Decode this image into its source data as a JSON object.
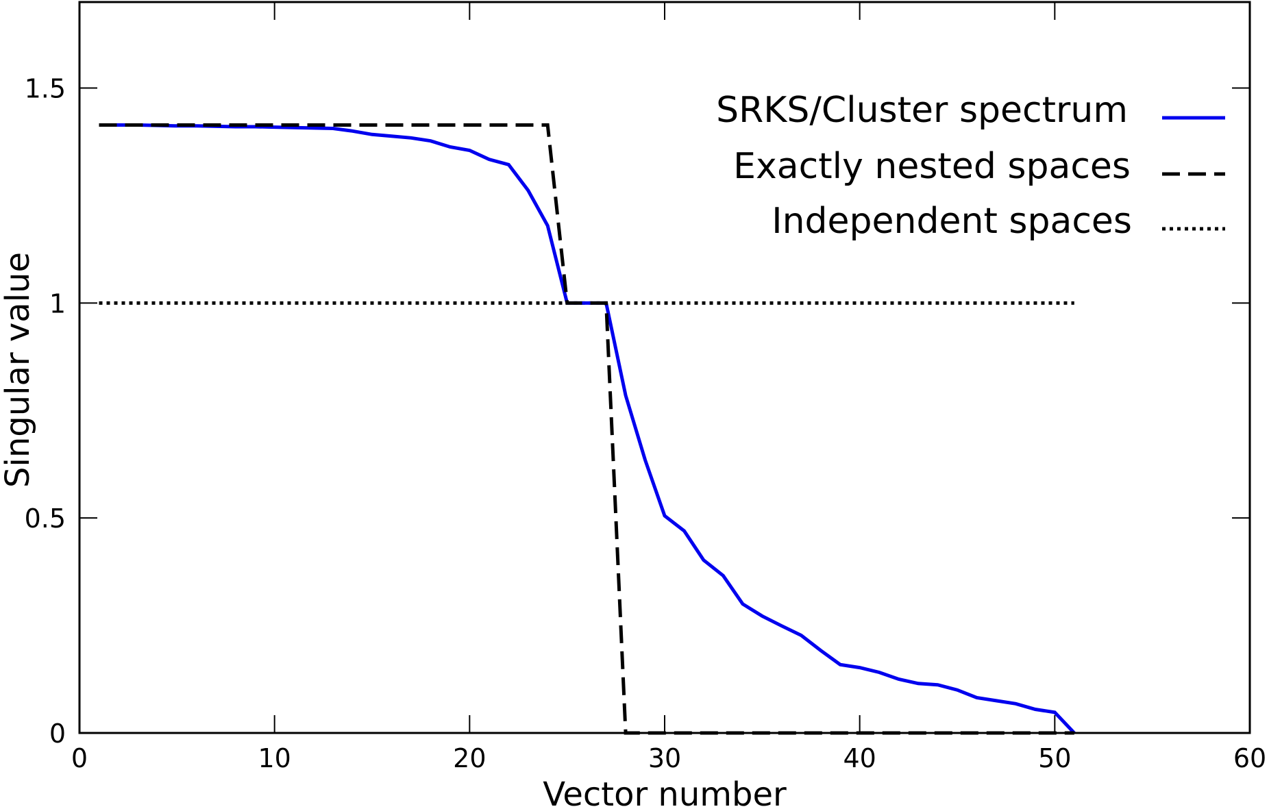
{
  "chart_data": {
    "type": "line",
    "title": "",
    "xlabel": "Vector number",
    "ylabel": "Singular value",
    "xlim": [
      0,
      60
    ],
    "ylim": [
      0,
      1.7
    ],
    "xticks": [
      0,
      10,
      20,
      30,
      40,
      50,
      60
    ],
    "xtick_labels": [
      "0",
      "10",
      "20",
      "30",
      "40",
      "50",
      "60"
    ],
    "yticks": [
      0,
      0.5,
      1,
      1.5
    ],
    "ytick_labels": [
      "0",
      "0.5",
      "1",
      "1.5"
    ],
    "grid": false,
    "legend_position": "top-right",
    "series": [
      {
        "name": "SRKS/Cluster spectrum",
        "style": "solid",
        "color": "#0000ee",
        "x": [
          1,
          2,
          3,
          4,
          5,
          6,
          7,
          8,
          9,
          10,
          11,
          12,
          13,
          14,
          15,
          16,
          17,
          18,
          19,
          20,
          21,
          22,
          23,
          24,
          25,
          26,
          27,
          28,
          29,
          30,
          31,
          32,
          33,
          34,
          35,
          36,
          37,
          38,
          39,
          40,
          41,
          42,
          43,
          44,
          45,
          46,
          47,
          48,
          49,
          50,
          51
        ],
        "y": [
          1.414,
          1.414,
          1.414,
          1.413,
          1.412,
          1.412,
          1.411,
          1.41,
          1.41,
          1.409,
          1.408,
          1.407,
          1.406,
          1.4,
          1.392,
          1.388,
          1.384,
          1.377,
          1.363,
          1.355,
          1.334,
          1.322,
          1.262,
          1.18,
          1.0,
          1.0,
          1.0,
          0.785,
          0.635,
          0.505,
          0.47,
          0.402,
          0.366,
          0.3,
          0.272,
          0.249,
          0.227,
          0.192,
          0.159,
          0.152,
          0.141,
          0.125,
          0.115,
          0.112,
          0.1,
          0.082,
          0.075,
          0.068,
          0.055,
          0.048,
          0.0
        ]
      },
      {
        "name": "Exactly nested spaces",
        "style": "dashed",
        "color": "#000000",
        "x": [
          1,
          24,
          25,
          27,
          28,
          51
        ],
        "y": [
          1.414,
          1.414,
          1.0,
          1.0,
          0.0,
          0.0
        ]
      },
      {
        "name": "Independent spaces",
        "style": "dotted",
        "color": "#000000",
        "x": [
          1,
          51
        ],
        "y": [
          1.0,
          1.0
        ]
      }
    ]
  }
}
